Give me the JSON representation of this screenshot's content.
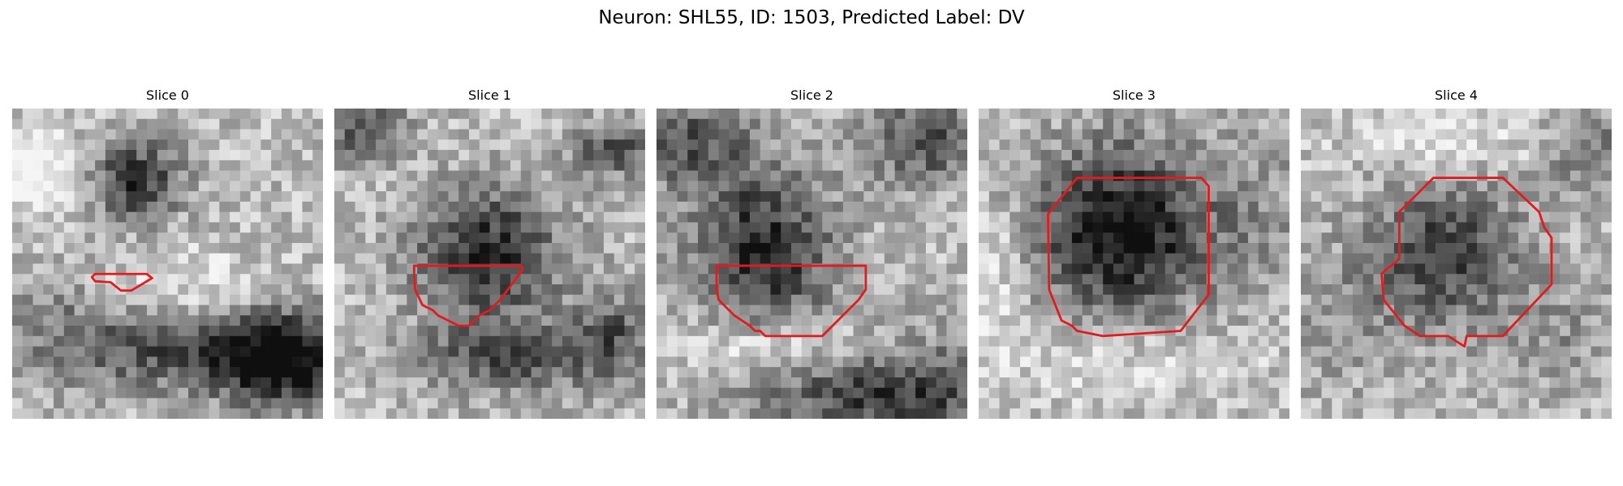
{
  "figure": {
    "title": "Neuron: SHL55, ID: 1503, Predicted Label: DV",
    "colormap": "gray",
    "contour_color": "#e41a1c"
  },
  "panels": [
    {
      "title": "Slice 0"
    },
    {
      "title": "Slice 1"
    },
    {
      "title": "Slice 2"
    },
    {
      "title": "Slice 3"
    },
    {
      "title": "Slice 4"
    }
  ]
}
